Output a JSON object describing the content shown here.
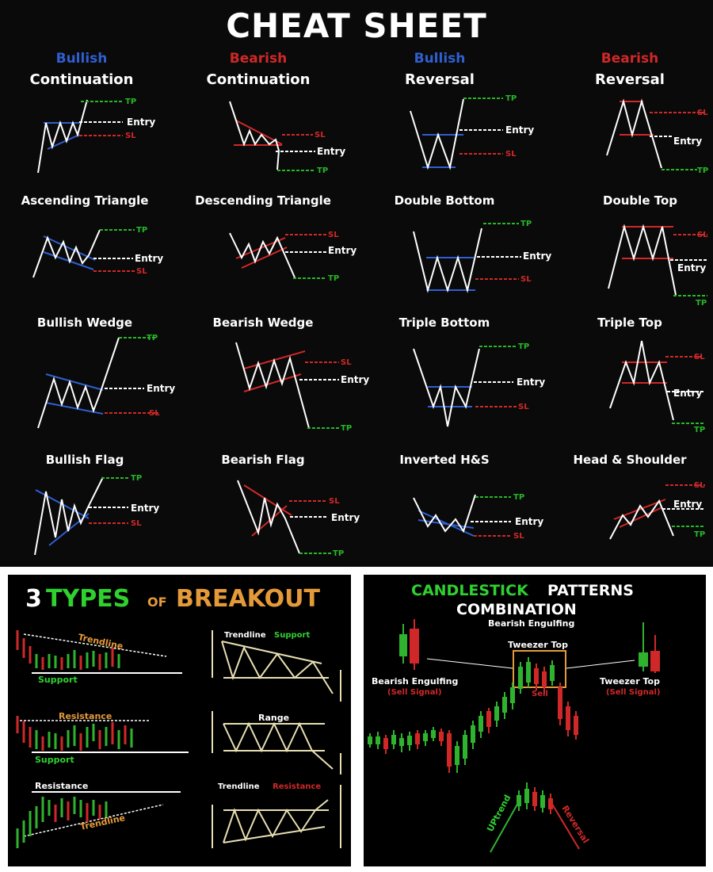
{
  "title": "CHEAT SHEET",
  "categories": [
    {
      "type": "Bullish",
      "sub": "Continuation",
      "color": "#2f5fd0"
    },
    {
      "type": "Bearish",
      "sub": "Continuation",
      "color": "#d02828"
    },
    {
      "type": "Bullish",
      "sub": "Reversal",
      "color": "#2f5fd0"
    },
    {
      "type": "Bearish",
      "sub": "Reversal",
      "color": "#d02828"
    }
  ],
  "pattern_labels": [
    "Ascending Triangle",
    "Descending Triangle",
    "Double Bottom",
    "Double Top",
    "Bullish Wedge",
    "Bearish Wedge",
    "Triple Bottom",
    "Triple Top",
    "Bullish Flag",
    "Bearish Flag",
    "Inverted H&S",
    "Head & Shoulder"
  ],
  "markers": {
    "tp": "TP",
    "sl": "SL",
    "entry": "Entry"
  },
  "colors": {
    "bullish": "#2f5fd0",
    "bearish": "#d02828",
    "tp": "#27b727",
    "sl": "#d02828",
    "line": "#ffffff"
  },
  "breakout": {
    "title_num": "3",
    "title_types": "TYPES",
    "title_of": "OF",
    "title_breakout": "BREAKOUT",
    "labels": {
      "trendline": "Trendline",
      "support": "Support",
      "resistance": "Resistance",
      "trendline_support_a": "Trendline",
      "trendline_support_b": "Support",
      "range": "Range",
      "trendline_resistance_a": "Trendline",
      "trendline_resistance_b": "Resistance"
    }
  },
  "candles": {
    "title_a": "CANDLESTICK",
    "title_b": "PATTERNS",
    "title_c": "COMBINATION",
    "subtitle": "Bearish Engulfing",
    "tweezer_top": "Tweezer Top",
    "left_name": "Bearish Engulfing",
    "left_signal": "(Sell Signal)",
    "right_name": "Tweezer Top",
    "right_signal": "(Sell Signal)",
    "sell": "Sell",
    "uptrend": "UPtrend",
    "reversal": "Reversal"
  }
}
